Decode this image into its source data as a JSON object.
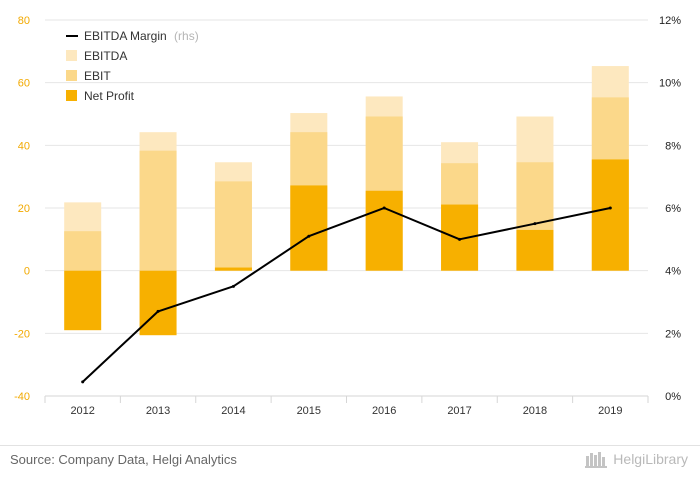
{
  "chart_data": {
    "type": "bar",
    "categories": [
      "2012",
      "2013",
      "2014",
      "2015",
      "2016",
      "2017",
      "2018",
      "2019"
    ],
    "series": [
      {
        "name": "EBITDA",
        "kind": "bar",
        "axis": "left",
        "color": "#fde8bf",
        "values": [
          21.8,
          44.2,
          34.6,
          50.3,
          55.6,
          41.0,
          49.2,
          65.3
        ]
      },
      {
        "name": "EBIT",
        "kind": "bar",
        "axis": "left",
        "color": "#fbd88a",
        "values": [
          12.6,
          38.3,
          28.5,
          44.2,
          49.2,
          34.3,
          34.6,
          55.3
        ]
      },
      {
        "name": "Net Profit",
        "kind": "bar",
        "axis": "left",
        "color": "#f7b000",
        "values": [
          -19.0,
          -20.6,
          1.0,
          27.2,
          25.5,
          21.1,
          13.0,
          35.5
        ]
      },
      {
        "name": "EBITDA Margin",
        "name_suffix": "(rhs)",
        "kind": "line",
        "axis": "right",
        "color": "#000000",
        "values": [
          0.45,
          2.7,
          3.5,
          5.1,
          6.0,
          5.0,
          5.5,
          6.0
        ]
      }
    ],
    "y_left": {
      "min": -40,
      "max": 80,
      "ticks": [
        "-40",
        "-20",
        "0",
        "20",
        "40",
        "60",
        "80"
      ],
      "tick_color": "#f2a900"
    },
    "y_right": {
      "min": 0,
      "max": 12,
      "ticks": [
        "0%",
        "2%",
        "4%",
        "6%",
        "8%",
        "10%",
        "12%"
      ]
    },
    "grid": true,
    "legend_position": "top-left"
  },
  "footer": {
    "source": "Source: Company Data, Helgi Analytics",
    "logo_text": "HelgiLibrary"
  }
}
